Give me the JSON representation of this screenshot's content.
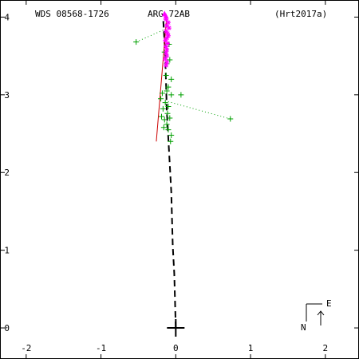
{
  "header": {
    "left": "WDS 08568-1726",
    "center": "ARG  72AB",
    "right": "(Hrt2017a)"
  },
  "compass": {
    "east_label": "E",
    "north_label": "N"
  },
  "chart_data": {
    "type": "scatter",
    "title": "",
    "xlabel": "",
    "ylabel": "",
    "xlim": [
      -2.35,
      2.45
    ],
    "ylim": [
      -0.4,
      4.22
    ],
    "x_ticks": [
      -2,
      -1,
      0,
      1,
      2
    ],
    "y_ticks": [
      0,
      1,
      2,
      3,
      4
    ],
    "x_tick_labels": [
      "-2",
      "-1",
      "0",
      "1",
      "2"
    ],
    "y_tick_labels": [
      "0",
      "1",
      "2",
      "3",
      "4"
    ],
    "grid": false,
    "colors": {
      "micrometer": "#00a000",
      "interferometric": "#ff00ff",
      "fit_line": "#cc0000",
      "orbit": "#000000"
    },
    "primary_star": [
      0,
      0
    ],
    "orbit_path": [
      [
        0.0,
        0.0
      ],
      [
        -0.01,
        0.35
      ],
      [
        -0.02,
        0.7
      ],
      [
        -0.04,
        1.05
      ],
      [
        -0.05,
        1.4
      ],
      [
        -0.06,
        1.75
      ],
      [
        -0.08,
        2.1
      ],
      [
        -0.1,
        2.45
      ],
      [
        -0.12,
        2.8
      ],
      [
        -0.13,
        3.15
      ],
      [
        -0.14,
        3.5
      ],
      [
        -0.16,
        3.85
      ],
      [
        -0.17,
        4.0
      ]
    ],
    "fit_line": [
      [
        -0.26,
        2.4
      ],
      [
        -0.12,
        4.02
      ]
    ],
    "series": [
      {
        "marker": "plus",
        "color": "#00a000",
        "points": [
          [
            -0.53,
            3.68
          ],
          [
            -0.18,
            3.02
          ],
          [
            -0.12,
            3.05
          ],
          [
            -0.06,
            3.0
          ],
          [
            0.07,
            3.0
          ],
          [
            -0.2,
            2.95
          ],
          [
            -0.14,
            2.9
          ],
          [
            -0.1,
            2.85
          ],
          [
            -0.17,
            2.82
          ],
          [
            -0.11,
            2.76
          ],
          [
            -0.19,
            2.72
          ],
          [
            -0.15,
            2.68
          ],
          [
            -0.08,
            2.7
          ],
          [
            -0.12,
            2.62
          ],
          [
            -0.16,
            2.58
          ],
          [
            -0.1,
            2.55
          ],
          [
            -0.06,
            2.48
          ],
          [
            -0.07,
            2.4
          ],
          [
            0.73,
            2.69
          ],
          [
            -0.12,
            3.4
          ],
          [
            -0.08,
            3.45
          ],
          [
            -0.06,
            3.2
          ],
          [
            -0.13,
            3.25
          ],
          [
            -0.1,
            3.1
          ],
          [
            -0.09,
            3.65
          ],
          [
            -0.15,
            3.55
          ]
        ],
        "residual_lines": [
          [
            [
              -0.53,
              3.68
            ],
            [
              -0.15,
              3.84
            ]
          ],
          [
            [
              0.73,
              2.69
            ],
            [
              -0.13,
              2.92
            ]
          ]
        ]
      },
      {
        "marker": "star",
        "color": "#ff00ff",
        "points": [
          [
            -0.13,
            3.97
          ],
          [
            -0.1,
            3.93
          ],
          [
            -0.12,
            3.89
          ],
          [
            -0.09,
            3.86
          ],
          [
            -0.13,
            3.82
          ],
          [
            -0.11,
            3.79
          ],
          [
            -0.1,
            3.76
          ],
          [
            -0.12,
            3.73
          ],
          [
            -0.14,
            3.7
          ],
          [
            -0.11,
            3.66
          ],
          [
            -0.13,
            3.62
          ],
          [
            -0.12,
            3.58
          ],
          [
            -0.13,
            3.54
          ],
          [
            -0.12,
            3.5
          ],
          [
            -0.14,
            3.46
          ],
          [
            -0.12,
            3.42
          ],
          [
            -0.13,
            3.38
          ]
        ]
      },
      {
        "marker": "triangle",
        "color": "#ff00ff",
        "points": [
          [
            -0.15,
            4.04
          ],
          [
            -0.13,
            4.01
          ]
        ]
      }
    ]
  }
}
